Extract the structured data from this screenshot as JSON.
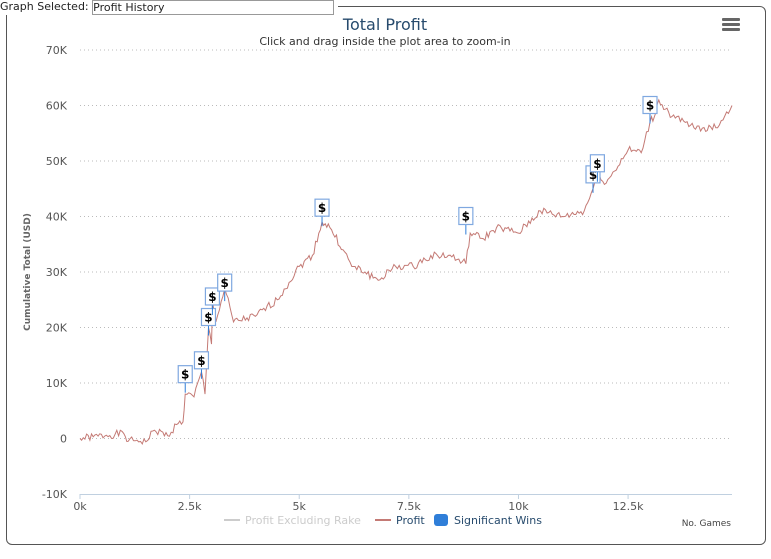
{
  "top_bar": {
    "label": "Graph Selected:",
    "selected": "Profit History"
  },
  "chart_data": {
    "type": "line",
    "title": "Total Profit",
    "subtitle": "Click and drag inside the plot area to zoom-in",
    "xlabel": "No. Games",
    "ylabel": "Cumulative Total (USD)",
    "xlim": [
      0,
      14870
    ],
    "ylim": [
      -10000,
      70000
    ],
    "x_ticks": [
      {
        "v": 0,
        "label": "0k"
      },
      {
        "v": 2500,
        "label": "2.5k"
      },
      {
        "v": 5000,
        "label": "5k"
      },
      {
        "v": 7500,
        "label": "7.5k"
      },
      {
        "v": 10000,
        "label": "10k"
      },
      {
        "v": 12500,
        "label": "12.5k"
      }
    ],
    "y_ticks": [
      {
        "v": -10000,
        "label": "-10K"
      },
      {
        "v": 0,
        "label": "0"
      },
      {
        "v": 10000,
        "label": "10K"
      },
      {
        "v": 20000,
        "label": "20K"
      },
      {
        "v": 30000,
        "label": "30K"
      },
      {
        "v": 40000,
        "label": "40K"
      },
      {
        "v": 50000,
        "label": "50K"
      },
      {
        "v": 60000,
        "label": "60K"
      },
      {
        "v": 70000,
        "label": "70K"
      }
    ],
    "legend": [
      {
        "name": "Profit Excluding Rake",
        "color": "#cccccc",
        "hidden": true
      },
      {
        "name": "Profit",
        "color": "#c47a75"
      },
      {
        "name": "Significant Wins",
        "color": "#2f7ed8"
      }
    ],
    "series": [
      {
        "name": "Profit",
        "color": "#c47a75",
        "points": [
          [
            0,
            0
          ],
          [
            300,
            300
          ],
          [
            600,
            600
          ],
          [
            1000,
            900
          ],
          [
            1100,
            -500
          ],
          [
            1300,
            -300
          ],
          [
            1500,
            -600
          ],
          [
            1700,
            1500
          ],
          [
            2000,
            500
          ],
          [
            2200,
            2500
          ],
          [
            2350,
            3000
          ],
          [
            2400,
            8000
          ],
          [
            2600,
            7500
          ],
          [
            2770,
            12000
          ],
          [
            2850,
            8000
          ],
          [
            2930,
            20000
          ],
          [
            3000,
            17000
          ],
          [
            3020,
            25000
          ],
          [
            3100,
            21000
          ],
          [
            3300,
            27000
          ],
          [
            3500,
            21000
          ],
          [
            4000,
            22000
          ],
          [
            4500,
            25000
          ],
          [
            5000,
            31000
          ],
          [
            5300,
            33000
          ],
          [
            5520,
            39000
          ],
          [
            5700,
            38000
          ],
          [
            6000,
            34000
          ],
          [
            6200,
            31000
          ],
          [
            6500,
            30000
          ],
          [
            6800,
            28500
          ],
          [
            7200,
            31000
          ],
          [
            7600,
            31000
          ],
          [
            8000,
            33000
          ],
          [
            8400,
            33000
          ],
          [
            8800,
            31500
          ],
          [
            8900,
            37000
          ],
          [
            9200,
            36000
          ],
          [
            9500,
            38000
          ],
          [
            10000,
            37000
          ],
          [
            10500,
            41000
          ],
          [
            11000,
            40000
          ],
          [
            11500,
            41000
          ],
          [
            11700,
            45000
          ],
          [
            11800,
            48000
          ],
          [
            12000,
            46000
          ],
          [
            12500,
            52000
          ],
          [
            12800,
            51500
          ],
          [
            13000,
            57000
          ],
          [
            13100,
            58000
          ],
          [
            13200,
            61000
          ],
          [
            13500,
            58000
          ],
          [
            14000,
            56000
          ],
          [
            14500,
            56000
          ],
          [
            14870,
            60000
          ]
        ]
      }
    ],
    "flags": {
      "symbol": "$",
      "points": [
        [
          2400,
          11500
        ],
        [
          2770,
          14000
        ],
        [
          2930,
          21800
        ],
        [
          3020,
          25500
        ],
        [
          3300,
          28000
        ],
        [
          5520,
          41500
        ],
        [
          8800,
          40000
        ],
        [
          11700,
          47500
        ],
        [
          11800,
          49500
        ],
        [
          13000,
          60000
        ]
      ]
    }
  }
}
